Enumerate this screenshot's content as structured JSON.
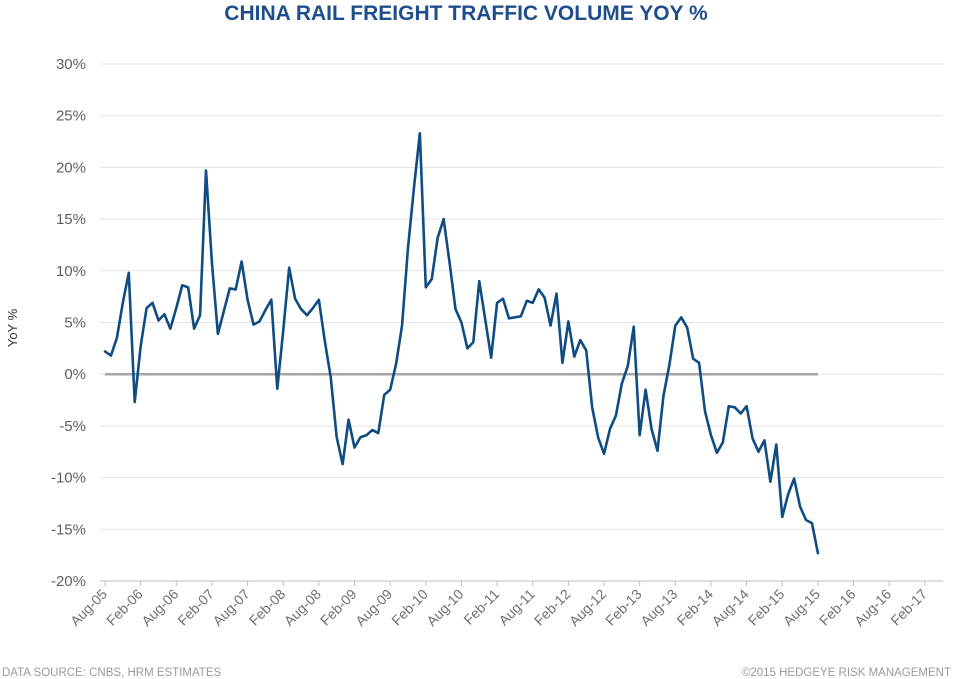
{
  "chart_data": {
    "type": "line",
    "title": "CHINA RAIL FREIGHT TRAFFIC VOLUME YOY %",
    "ylabel": "YoY %",
    "xlabel": "",
    "ylim": [
      -20,
      30
    ],
    "y_ticks": [
      "30%",
      "25%",
      "20%",
      "15%",
      "10%",
      "5%",
      "0%",
      "-5%",
      "-10%",
      "-15%",
      "-20%"
    ],
    "x_ticks": [
      "Aug-05",
      "Feb-06",
      "Aug-06",
      "Feb-07",
      "Aug-07",
      "Feb-08",
      "Aug-08",
      "Feb-09",
      "Aug-09",
      "Feb-10",
      "Aug-10",
      "Feb-11",
      "Aug-11",
      "Feb-12",
      "Aug-12",
      "Feb-13",
      "Aug-13",
      "Feb-14",
      "Aug-14",
      "Feb-15",
      "Aug-15",
      "Feb-16",
      "Aug-16",
      "Feb-17"
    ],
    "x_start": "Aug-05",
    "grid": true,
    "zero_line": true,
    "colors": {
      "series": "#0f4c81",
      "zero_line": "#a6a6a6",
      "grid": "#e3e3e3",
      "title": "#1f4e8c"
    },
    "series": [
      {
        "values": [
          2.2,
          1.8,
          3.5,
          6.9,
          9.8,
          -2.7,
          2.7,
          6.4,
          6.9,
          5.2,
          5.8,
          4.4,
          6.4,
          8.6,
          8.4,
          4.4,
          5.7,
          19.7,
          10.8,
          3.9,
          6.1,
          8.3,
          8.2,
          10.9,
          7.2,
          4.8,
          5.1,
          6.2,
          7.2,
          -1.4,
          4.2,
          10.3,
          7.3,
          6.3,
          5.7,
          6.4,
          7.2,
          3.2,
          -0.3,
          -6.1,
          -8.7,
          -4.4,
          -7.1,
          -6.1,
          -5.9,
          -5.4,
          -5.7,
          -2.0,
          -1.5,
          1.0,
          4.7,
          12.2,
          18.0,
          23.3,
          8.4,
          9.2,
          13.2,
          15.0,
          10.8,
          6.3,
          5.0,
          2.5,
          3.1,
          9.0,
          5.3,
          1.6,
          6.9,
          7.3,
          5.4,
          5.5,
          5.6,
          7.1,
          6.9,
          8.2,
          7.4,
          4.7,
          7.8,
          1.1,
          5.1,
          1.7,
          3.3,
          2.3,
          -3.2,
          -6.1,
          -7.7,
          -5.3,
          -4.0,
          -0.9,
          0.8,
          4.6,
          -5.9,
          -1.5,
          -5.3,
          -7.4,
          -2.1,
          0.9,
          4.7,
          5.5,
          4.5,
          1.5,
          1.1,
          -3.6,
          -5.9,
          -7.6,
          -6.6,
          -3.1,
          -3.2,
          -3.8,
          -3.1,
          -6.2,
          -7.5,
          -6.4,
          -10.4,
          -6.8,
          -13.8,
          -11.6,
          -10.1,
          -12.8,
          -14.1,
          -14.4,
          -17.3
        ]
      }
    ]
  },
  "footer": {
    "source": "DATA SOURCE: CNBS, HRM ESTIMATES",
    "copyright": "©2015 HEDGEYE RISK MANAGEMENT"
  }
}
